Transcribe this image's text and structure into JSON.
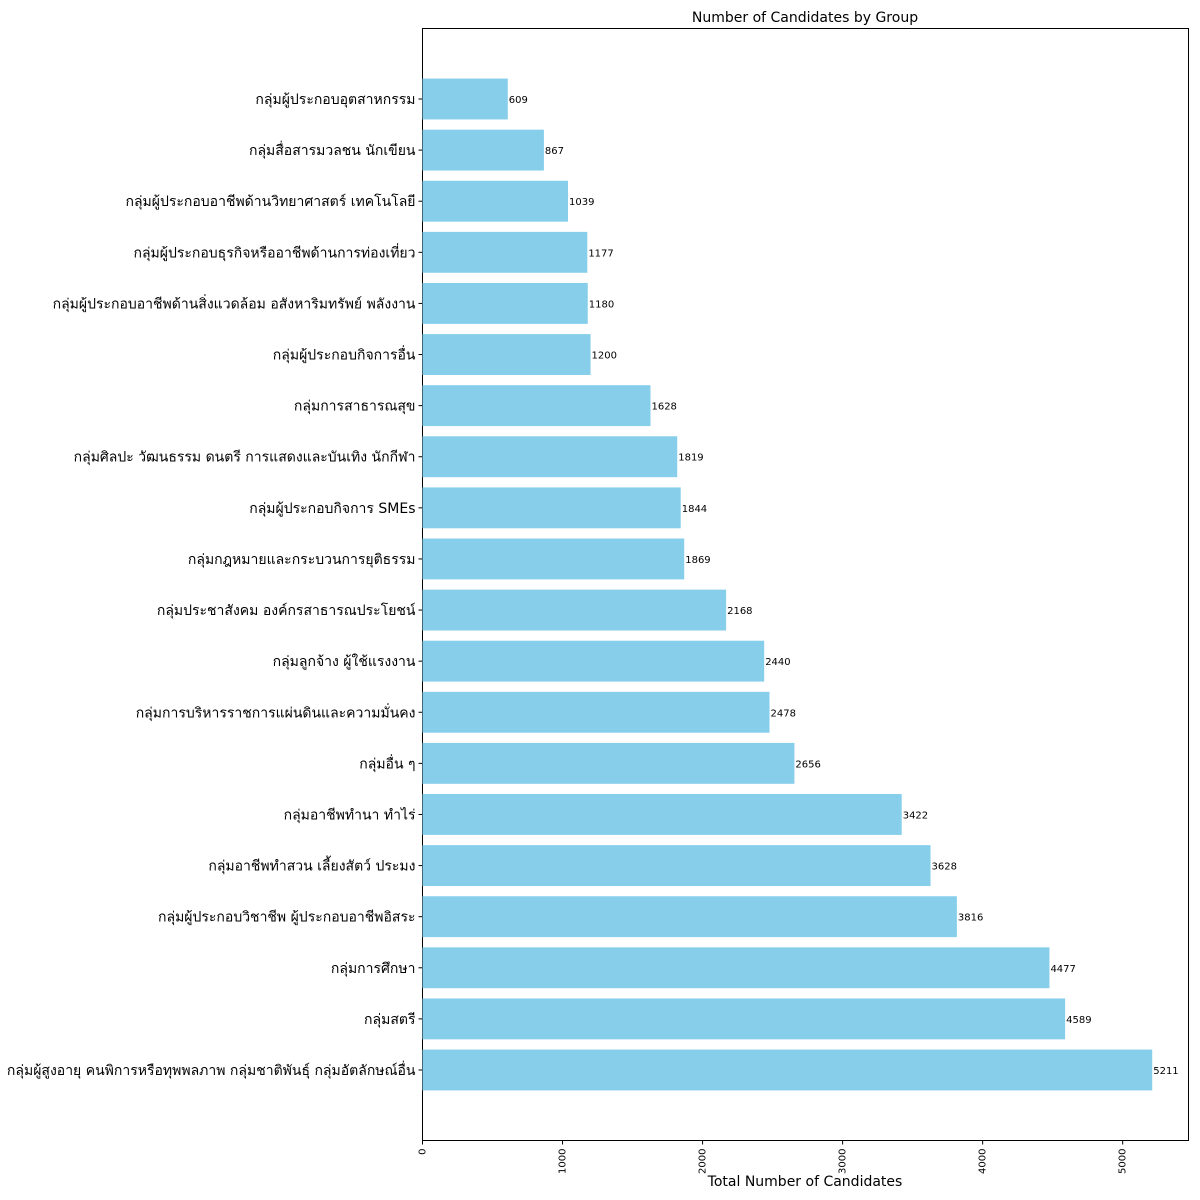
{
  "chart_data": {
    "type": "bar",
    "orientation": "horizontal",
    "title": "Number of Candidates by Group",
    "xlabel": "Total Number of Candidates",
    "ylabel": "",
    "xlim": [
      0,
      5470
    ],
    "xticks": [
      0,
      1000,
      2000,
      3000,
      4000,
      5000
    ],
    "grid": false,
    "bar_color": "#87CEEB",
    "categories": [
      "กลุ่มผู้ประกอบอุตสาหกรรม",
      "กลุ่มสื่อสารมวลชน นักเขียน",
      "กลุ่มผู้ประกอบอาชีพด้านวิทยาศาสตร์ เทคโนโลยี",
      "กลุ่มผู้ประกอบธุรกิจหรืออาชีพด้านการท่องเที่ยว",
      "กลุ่มผู้ประกอบอาชีพด้านสิ่งแวดล้อม อสังหาริมทรัพย์ พลังงาน",
      "กลุ่มผู้ประกอบกิจการอื่น",
      "กลุ่มการสาธารณสุข",
      "กลุ่มศิลปะ วัฒนธรรม ดนตรี การแสดงและบันเทิง นักกีฬา",
      "กลุ่มผู้ประกอบกิจการ SMEs",
      "กลุ่มกฎหมายและกระบวนการยุติธรรม",
      "กลุ่มประชาสังคม องค์กรสาธารณประโยชน์",
      "กลุ่มลูกจ้าง ผู้ใช้แรงงาน",
      "กลุ่มการบริหารราชการแผ่นดินและความมั่นคง",
      "กลุ่มอื่น ๆ",
      "กลุ่มอาชีพทำนา ทำไร่",
      "กลุ่มอาชีพทำสวน เลี้ยงสัตว์ ประมง",
      "กลุ่มผู้ประกอบวิชาชีพ ผู้ประกอบอาชีพอิสระ",
      "กลุ่มการศึกษา",
      "กลุ่มสตรี",
      "กลุ่มผู้สูงอายุ คนพิการหรือทุพพลภาพ กลุ่มชาติพันธุ์ กลุ่มอัตลักษณ์อื่น"
    ],
    "values": [
      609,
      867,
      1039,
      1177,
      1180,
      1200,
      1628,
      1819,
      1844,
      1869,
      2168,
      2440,
      2478,
      2656,
      3422,
      3628,
      3816,
      4477,
      4589,
      5211
    ]
  }
}
